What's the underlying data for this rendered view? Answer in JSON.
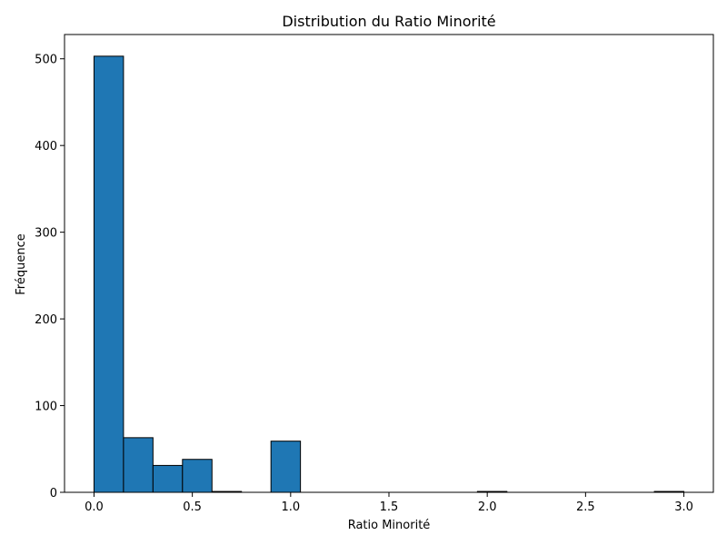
{
  "chart_data": {
    "type": "bar",
    "title": "Distribution du Ratio Minorité",
    "xlabel": "Ratio Minorité",
    "ylabel": "Fréquence",
    "xlim": [
      -0.15,
      3.15
    ],
    "ylim": [
      0,
      528
    ],
    "x_ticks": [
      {
        "value": 0.0,
        "label": "0.0"
      },
      {
        "value": 0.5,
        "label": "0.5"
      },
      {
        "value": 1.0,
        "label": "1.0"
      },
      {
        "value": 1.5,
        "label": "1.5"
      },
      {
        "value": 2.0,
        "label": "2.0"
      },
      {
        "value": 2.5,
        "label": "2.5"
      },
      {
        "value": 3.0,
        "label": "3.0"
      }
    ],
    "y_ticks": [
      {
        "value": 0,
        "label": "0"
      },
      {
        "value": 100,
        "label": "100"
      },
      {
        "value": 200,
        "label": "200"
      },
      {
        "value": 300,
        "label": "300"
      },
      {
        "value": 400,
        "label": "400"
      },
      {
        "value": 500,
        "label": "500"
      }
    ],
    "bins": [
      {
        "start": 0.0,
        "end": 0.15,
        "count": 503
      },
      {
        "start": 0.15,
        "end": 0.3,
        "count": 63
      },
      {
        "start": 0.3,
        "end": 0.45,
        "count": 31
      },
      {
        "start": 0.45,
        "end": 0.6,
        "count": 38
      },
      {
        "start": 0.6,
        "end": 0.75,
        "count": 1
      },
      {
        "start": 0.75,
        "end": 0.9,
        "count": 0
      },
      {
        "start": 0.9,
        "end": 1.05,
        "count": 59
      },
      {
        "start": 1.05,
        "end": 1.2,
        "count": 0
      },
      {
        "start": 1.2,
        "end": 1.35,
        "count": 0
      },
      {
        "start": 1.35,
        "end": 1.5,
        "count": 0
      },
      {
        "start": 1.5,
        "end": 1.65,
        "count": 0
      },
      {
        "start": 1.65,
        "end": 1.8,
        "count": 0
      },
      {
        "start": 1.8,
        "end": 1.95,
        "count": 0
      },
      {
        "start": 1.95,
        "end": 2.1,
        "count": 1
      },
      {
        "start": 2.1,
        "end": 2.25,
        "count": 0
      },
      {
        "start": 2.25,
        "end": 2.4,
        "count": 0
      },
      {
        "start": 2.4,
        "end": 2.55,
        "count": 0
      },
      {
        "start": 2.55,
        "end": 2.7,
        "count": 0
      },
      {
        "start": 2.7,
        "end": 2.85,
        "count": 0
      },
      {
        "start": 2.85,
        "end": 3.0,
        "count": 1
      }
    ],
    "grid": false,
    "legend": false,
    "colors": {
      "bar_fill": "#1f77b4",
      "bar_edge": "#000000",
      "axis": "#000000",
      "background": "#ffffff"
    }
  }
}
